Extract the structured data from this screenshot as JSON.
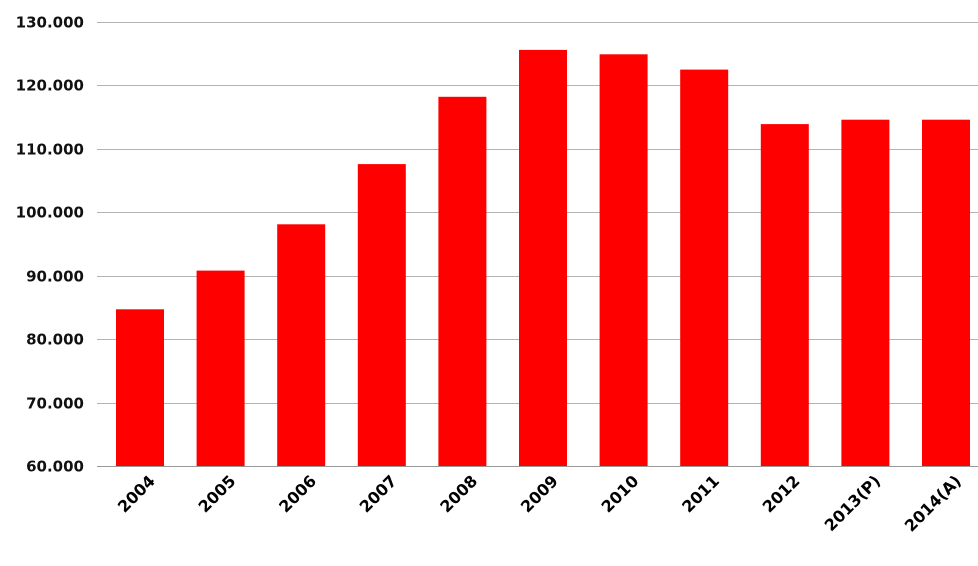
{
  "chart_data": {
    "type": "bar",
    "categories": [
      "2004",
      "2005",
      "2006",
      "2007",
      "2008",
      "2009",
      "2010",
      "2011",
      "2012",
      "2013(P)",
      "2014(A)"
    ],
    "values": [
      84700,
      90800,
      98100,
      107600,
      118200,
      125600,
      124900,
      122500,
      113900,
      114600,
      114600
    ],
    "title": "",
    "xlabel": "",
    "ylabel": "",
    "ylim": [
      60000,
      130000
    ],
    "yticks": [
      60000,
      70000,
      80000,
      90000,
      100000,
      110000,
      120000,
      130000
    ],
    "ytick_labels": [
      "60.000",
      "70.000",
      "80.000",
      "90.000",
      "100.000",
      "110.000",
      "120.000",
      "130.000"
    ],
    "grid": true,
    "bar_color": "#ff0000",
    "grid_color": "#b3b3b3"
  }
}
